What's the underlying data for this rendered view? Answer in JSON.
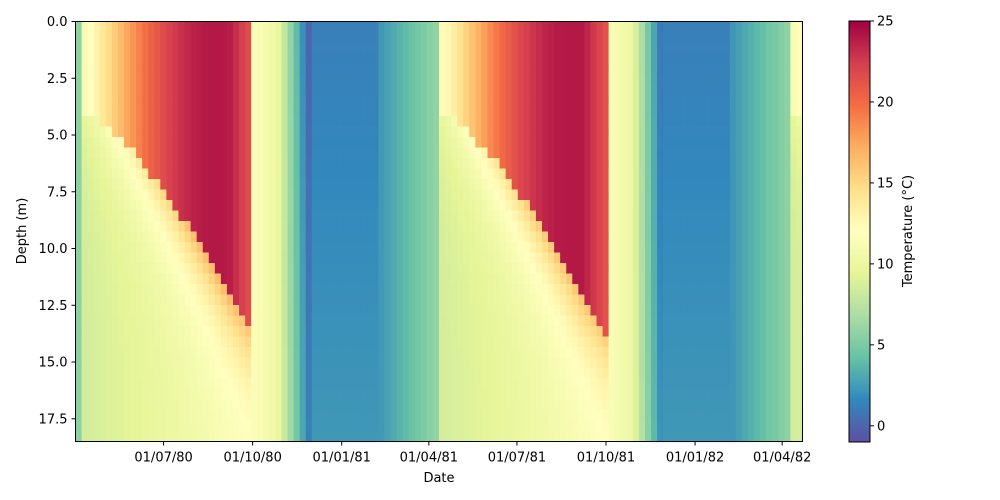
{
  "chart_data": {
    "type": "heatmap",
    "title": "",
    "xlabel": "Date",
    "ylabel": "Depth (m)",
    "colorbar_label": "Temperature (°C)",
    "y_inverted": true,
    "ylim": [
      0.0,
      18.5
    ],
    "x_range": [
      "1980-04-01",
      "1982-04-22"
    ],
    "x_ticks": [
      {
        "label": "01/07/80",
        "date": "1980-07-01"
      },
      {
        "label": "01/10/80",
        "date": "1980-10-01"
      },
      {
        "label": "01/01/81",
        "date": "1981-01-01"
      },
      {
        "label": "01/04/81",
        "date": "1981-04-01"
      },
      {
        "label": "01/07/81",
        "date": "1981-07-01"
      },
      {
        "label": "01/10/81",
        "date": "1981-10-01"
      },
      {
        "label": "01/01/82",
        "date": "1982-01-01"
      },
      {
        "label": "01/04/82",
        "date": "1982-04-01"
      }
    ],
    "y_ticks": [
      {
        "label": "0.0",
        "value": 0.0
      },
      {
        "label": "2.5",
        "value": 2.5
      },
      {
        "label": "5.0",
        "value": 5.0
      },
      {
        "label": "7.5",
        "value": 7.5
      },
      {
        "label": "10.0",
        "value": 10.0
      },
      {
        "label": "12.5",
        "value": 12.5
      },
      {
        "label": "15.0",
        "value": 15.0
      },
      {
        "label": "17.5",
        "value": 17.5
      }
    ],
    "colorbar": {
      "colormap": "Spectral_r",
      "vmin": -1,
      "vmax": 25,
      "ticks": [
        {
          "label": "0",
          "value": 0
        },
        {
          "label": "5",
          "value": 5
        },
        {
          "label": "10",
          "value": 10
        },
        {
          "label": "15",
          "value": 15
        },
        {
          "label": "20",
          "value": 20
        },
        {
          "label": "25",
          "value": 25
        }
      ]
    },
    "colors": [
      "#5e4fa2",
      "#3288bd",
      "#66c2a5",
      "#abdda4",
      "#e6f598",
      "#ffffbf",
      "#fee08b",
      "#fdae61",
      "#f46d43",
      "#d53e4f",
      "#9e0142"
    ]
  }
}
